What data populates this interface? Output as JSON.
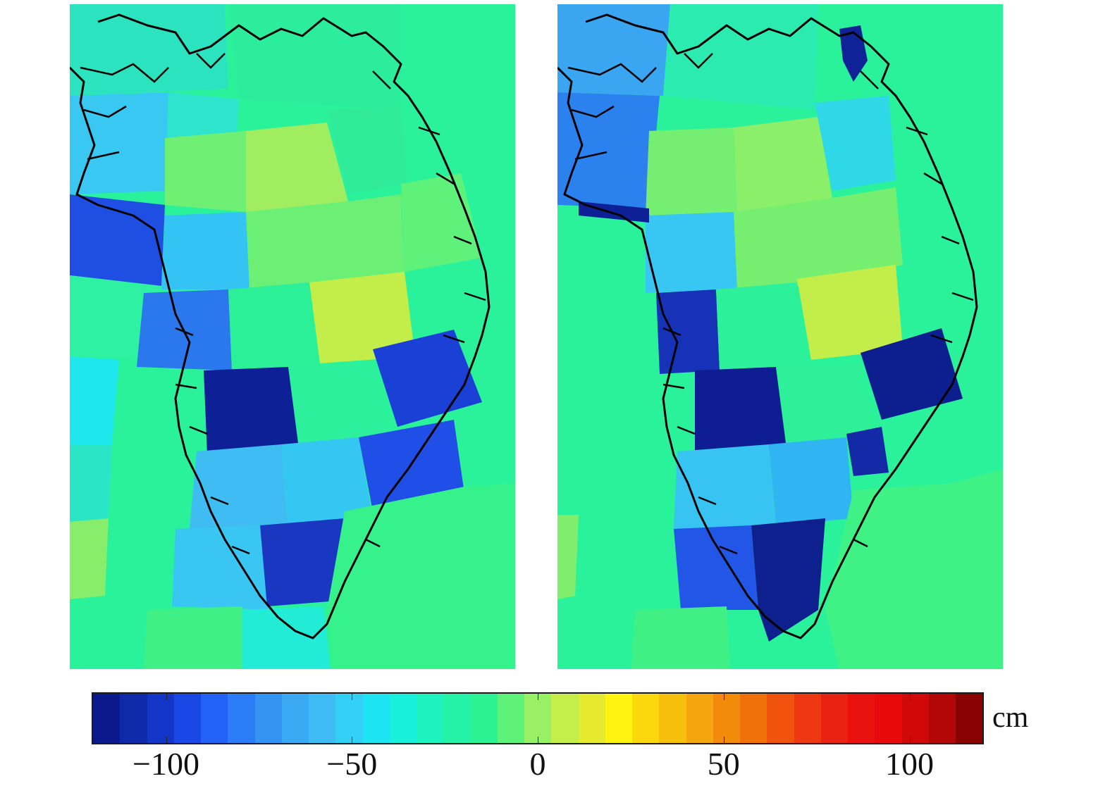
{
  "figure": {
    "panels": [
      {
        "id": "left"
      },
      {
        "id": "right"
      }
    ]
  },
  "colorbar": {
    "unit": "cm",
    "min": -120,
    "max": 120,
    "ticks": [
      {
        "value": -100,
        "label": "−100"
      },
      {
        "value": -50,
        "label": "−50"
      },
      {
        "value": 0,
        "label": "0"
      },
      {
        "value": 50,
        "label": "50"
      },
      {
        "value": 100,
        "label": "100"
      }
    ],
    "colors": [
      "#0a1a8c",
      "#0f2aa8",
      "#1336c8",
      "#1a48e6",
      "#2262f5",
      "#2b7cf6",
      "#3394f3",
      "#3aa8f2",
      "#40bcf4",
      "#33d0f6",
      "#1de4f2",
      "#18f0dc",
      "#1ef2be",
      "#25f2a6",
      "#2cf294",
      "#5ef27a",
      "#98f064",
      "#c4ee4a",
      "#e6ea2e",
      "#fff310",
      "#fbd80e",
      "#f6bf0b",
      "#f5a60c",
      "#f28b0a",
      "#f0700a",
      "#ef530e",
      "#ee3812",
      "#ea2212",
      "#e8110e",
      "#e80a0a",
      "#d00808",
      "#b30606",
      "#8a0303"
    ]
  }
}
